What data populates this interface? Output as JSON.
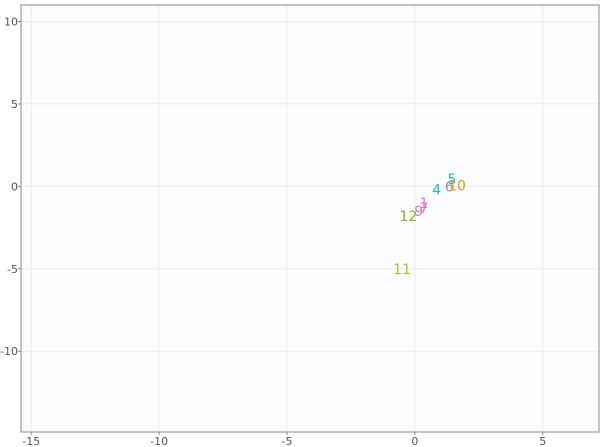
{
  "chart_data": {
    "type": "scatter",
    "title": "",
    "xlabel": "",
    "ylabel": "",
    "xlim": [
      -15.4,
      7.2
    ],
    "ylim": [
      -14.9,
      11
    ],
    "x_ticks": [
      -15,
      -10,
      -5,
      0,
      5
    ],
    "y_ticks": [
      -10,
      -5,
      0,
      5,
      10
    ],
    "grid": true,
    "legend": "none",
    "series": [
      {
        "points": [
          {
            "label": "1",
            "x": 0.35,
            "y": -1.0,
            "color": "#e377c2"
          },
          {
            "label": "4",
            "x": 0.85,
            "y": -0.2,
            "color": "#17becf"
          },
          {
            "label": "5",
            "x": 1.45,
            "y": 0.45,
            "color": "#17becf"
          },
          {
            "label": "6",
            "x": 1.35,
            "y": 0.0,
            "color": "#8c8ccf"
          },
          {
            "label": "7",
            "x": 0.35,
            "y": -1.3,
            "color": "#e377c2"
          },
          {
            "label": "9",
            "x": 0.15,
            "y": -1.5,
            "color": "#e377c2"
          },
          {
            "label": "10",
            "x": 1.65,
            "y": 0.05,
            "color": "#d4a017"
          },
          {
            "label": "11",
            "x": -0.5,
            "y": -5.0,
            "color": "#bcbd22"
          },
          {
            "label": "12",
            "x": -0.25,
            "y": -1.8,
            "color": "#7cb518"
          }
        ]
      }
    ]
  }
}
